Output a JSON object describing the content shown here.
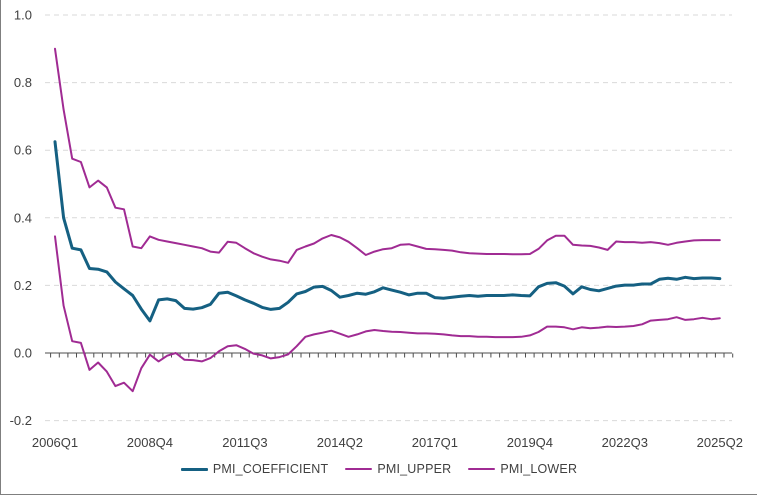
{
  "style": {
    "background_color": "#FFFFFF",
    "frame_border_color": "#7F7F7F",
    "gridline_color": "#D9D9D9",
    "axis_color": "#4D4D4D",
    "label_color": "#404040",
    "coefficient_color": "#156082",
    "band_color": "#A02B93"
  },
  "chart_data": {
    "type": "line",
    "title": "",
    "grid": "horizontal dashed",
    "legend_position": "bottom",
    "x_categories": [
      "2006Q1",
      "2006Q2",
      "2006Q3",
      "2006Q4",
      "2007Q1",
      "2007Q2",
      "2007Q3",
      "2007Q4",
      "2008Q1",
      "2008Q2",
      "2008Q3",
      "2008Q4",
      "2009Q1",
      "2009Q2",
      "2009Q3",
      "2009Q4",
      "2010Q1",
      "2010Q2",
      "2010Q3",
      "2010Q4",
      "2011Q1",
      "2011Q2",
      "2011Q3",
      "2011Q4",
      "2012Q1",
      "2012Q2",
      "2012Q3",
      "2012Q4",
      "2013Q1",
      "2013Q2",
      "2013Q3",
      "2013Q4",
      "2014Q1",
      "2014Q2",
      "2014Q3",
      "2014Q4",
      "2015Q1",
      "2015Q2",
      "2015Q3",
      "2015Q4",
      "2016Q1",
      "2016Q2",
      "2016Q3",
      "2016Q4",
      "2017Q1",
      "2017Q2",
      "2017Q3",
      "2017Q4",
      "2018Q1",
      "2018Q2",
      "2018Q3",
      "2018Q4",
      "2019Q1",
      "2019Q2",
      "2019Q3",
      "2019Q4",
      "2020Q1",
      "2020Q2",
      "2020Q3",
      "2020Q4",
      "2021Q1",
      "2021Q2",
      "2021Q3",
      "2021Q4",
      "2022Q1",
      "2022Q2",
      "2022Q3",
      "2022Q4",
      "2023Q1",
      "2023Q2",
      "2023Q3",
      "2023Q4",
      "2024Q1",
      "2024Q2",
      "2024Q3",
      "2024Q4",
      "2025Q1",
      "2025Q2"
    ],
    "x_axis": {
      "ticks": [
        {
          "label": "2006Q1",
          "index": 0
        },
        {
          "label": "2008Q4",
          "index": 11
        },
        {
          "label": "2011Q3",
          "index": 22
        },
        {
          "label": "2014Q2",
          "index": 33
        },
        {
          "label": "2017Q1",
          "index": 44
        },
        {
          "label": "2019Q4",
          "index": 55
        },
        {
          "label": "2022Q3",
          "index": 66
        },
        {
          "label": "2025Q2",
          "index": 77
        }
      ]
    },
    "y_axis": {
      "min": -0.2,
      "max": 1.0,
      "step": 0.2,
      "ticks": [
        {
          "label": "1.0",
          "value": 1.0
        },
        {
          "label": "0.8",
          "value": 0.8
        },
        {
          "label": "0.6",
          "value": 0.6
        },
        {
          "label": "0.4",
          "value": 0.4
        },
        {
          "label": "0.2",
          "value": 0.2
        },
        {
          "label": "0.0",
          "value": 0.0
        },
        {
          "label": "-0.2",
          "value": -0.2
        }
      ],
      "gridline_values": [
        1.0,
        0.8,
        0.6,
        0.4,
        0.2,
        -0.2
      ]
    },
    "series": [
      {
        "name": "PMI_COEFFICIENT",
        "color": "#156082",
        "line_width": 3,
        "values": [
          0.625,
          0.4,
          0.31,
          0.305,
          0.25,
          0.248,
          0.24,
          0.21,
          0.19,
          0.17,
          0.13,
          0.095,
          0.157,
          0.16,
          0.155,
          0.132,
          0.13,
          0.134,
          0.144,
          0.177,
          0.18,
          0.169,
          0.157,
          0.147,
          0.135,
          0.129,
          0.132,
          0.15,
          0.175,
          0.182,
          0.195,
          0.197,
          0.185,
          0.165,
          0.17,
          0.177,
          0.174,
          0.181,
          0.193,
          0.186,
          0.18,
          0.172,
          0.177,
          0.177,
          0.164,
          0.162,
          0.165,
          0.168,
          0.17,
          0.168,
          0.17,
          0.17,
          0.17,
          0.172,
          0.17,
          0.169,
          0.196,
          0.206,
          0.208,
          0.198,
          0.175,
          0.196,
          0.188,
          0.184,
          0.191,
          0.198,
          0.201,
          0.201,
          0.204,
          0.204,
          0.218,
          0.221,
          0.218,
          0.224,
          0.22,
          0.222,
          0.222,
          0.22
        ]
      },
      {
        "name": "PMI_UPPER",
        "color": "#A02B93",
        "line_width": 2,
        "values": [
          0.9,
          0.72,
          0.575,
          0.565,
          0.49,
          0.51,
          0.49,
          0.43,
          0.425,
          0.315,
          0.31,
          0.345,
          0.335,
          0.33,
          0.325,
          0.32,
          0.315,
          0.31,
          0.3,
          0.297,
          0.329,
          0.326,
          0.31,
          0.295,
          0.285,
          0.277,
          0.273,
          0.267,
          0.305,
          0.315,
          0.324,
          0.339,
          0.349,
          0.342,
          0.329,
          0.31,
          0.29,
          0.3,
          0.307,
          0.31,
          0.32,
          0.322,
          0.315,
          0.308,
          0.307,
          0.305,
          0.303,
          0.298,
          0.295,
          0.294,
          0.293,
          0.293,
          0.293,
          0.292,
          0.292,
          0.293,
          0.308,
          0.333,
          0.347,
          0.347,
          0.32,
          0.318,
          0.317,
          0.312,
          0.305,
          0.33,
          0.328,
          0.328,
          0.326,
          0.328,
          0.325,
          0.32,
          0.326,
          0.33,
          0.333,
          0.334,
          0.334,
          0.334
        ]
      },
      {
        "name": "PMI_LOWER",
        "color": "#A02B93",
        "line_width": 2,
        "values": [
          0.345,
          0.14,
          0.035,
          0.03,
          -0.05,
          -0.028,
          -0.055,
          -0.098,
          -0.088,
          -0.113,
          -0.045,
          -0.005,
          -0.025,
          -0.008,
          0.0,
          -0.02,
          -0.021,
          -0.025,
          -0.015,
          0.005,
          0.02,
          0.023,
          0.012,
          -0.002,
          -0.007,
          -0.016,
          -0.012,
          -0.004,
          0.02,
          0.048,
          0.055,
          0.06,
          0.066,
          0.057,
          0.048,
          0.055,
          0.064,
          0.068,
          0.065,
          0.063,
          0.062,
          0.06,
          0.058,
          0.058,
          0.057,
          0.055,
          0.052,
          0.05,
          0.05,
          0.048,
          0.048,
          0.047,
          0.047,
          0.047,
          0.048,
          0.052,
          0.062,
          0.078,
          0.078,
          0.076,
          0.07,
          0.076,
          0.073,
          0.075,
          0.078,
          0.077,
          0.078,
          0.08,
          0.085,
          0.096,
          0.098,
          0.1,
          0.106,
          0.098,
          0.1,
          0.104,
          0.1,
          0.103
        ]
      }
    ]
  }
}
